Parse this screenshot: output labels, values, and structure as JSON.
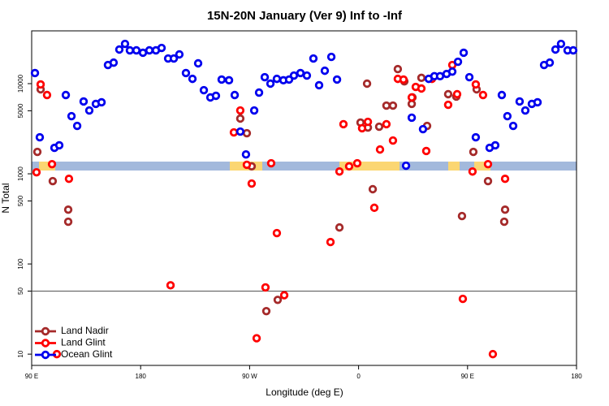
{
  "chart_data": {
    "type": "scatter",
    "title": "15N-20N January (Ver 9)   Inf to -Inf",
    "x_label": "Longitude (deg E)",
    "y_label": "N Total",
    "xlim": [
      90,
      540
    ],
    "xticks": [
      {
        "value": 90,
        "label": "90 E"
      },
      {
        "value": 180,
        "label": "180"
      },
      {
        "value": 270,
        "label": "90 W"
      },
      {
        "value": 360,
        "label": "0"
      },
      {
        "value": 450,
        "label": "90 E"
      },
      {
        "value": 540,
        "label": "180"
      }
    ],
    "ylim": [
      7.5,
      38500
    ],
    "log_y": true,
    "yticks": [
      10,
      50,
      100,
      500,
      1000,
      5000,
      10000
    ],
    "hline": 50,
    "legend": "bottom-left",
    "series": [
      {
        "name": "Land Nadir",
        "color": "#a52a2a",
        "x": [
          94.7,
          97.4,
          107.4,
          120.2,
          120.2,
          262.3,
          267.7,
          271.7,
          283.8,
          293.2,
          344.2,
          361.6,
          367.7,
          367,
          371.7,
          377,
          383,
          388.4,
          392.4,
          397.8,
          403.9,
          404.5,
          411.9,
          416.6,
          434,
          440.7,
          445.4,
          454.8,
          457.5,
          466.9,
          481,
          480.3
        ],
        "values": [
          1750,
          8650,
          830,
          400,
          294,
          4100,
          2820,
          1210,
          30,
          40,
          254,
          3700,
          3260,
          10000,
          675,
          3330,
          5710,
          5710,
          14500,
          10600,
          5960,
          7030,
          11600,
          3400,
          7640,
          7180,
          340,
          1750,
          8650,
          830,
          400,
          294
        ]
      },
      {
        "name": "Land Glint",
        "color": "#ff0000",
        "x": [
          94,
          97.4,
          102.7,
          106.8,
          120.8,
          110.8,
          204.7,
          257,
          262.3,
          267.7,
          271.7,
          275.8,
          283.1,
          287.8,
          292.5,
          298.6,
          336.8,
          344.2,
          347.5,
          352.2,
          358.9,
          362.9,
          367.7,
          373,
          377.7,
          383,
          388.4,
          392.4,
          397.1,
          403.9,
          407.2,
          411.9,
          415.9,
          420.6,
          434,
          437.4,
          441.4,
          446.1,
          454.1,
          456.8,
          462.8,
          466.9,
          481,
          470.9
        ],
        "values": [
          1040,
          9800,
          7480,
          1280,
          880,
          10,
          58,
          2880,
          5040,
          1260,
          780,
          15,
          55,
          1310,
          220,
          45,
          175,
          1060,
          3550,
          1210,
          1310,
          3200,
          3770,
          420,
          1860,
          3550,
          2340,
          11300,
          11100,
          7030,
          9200,
          8830,
          1790,
          11300,
          5830,
          16100,
          7640,
          41,
          1060,
          9800,
          7480,
          1280,
          880,
          10
        ]
      },
      {
        "name": "Ocean Glint",
        "color": "#0000ee",
        "x": [
          92.7,
          96.7,
          108.8,
          112.8,
          118.2,
          122.9,
          127.6,
          132.9,
          137.6,
          143,
          147.7,
          153,
          157.7,
          162.4,
          167.1,
          171.1,
          176.5,
          181.9,
          187.2,
          192.6,
          197.3,
          202.7,
          207.4,
          212,
          217.4,
          222.8,
          227.5,
          232.2,
          237.6,
          242.2,
          246.9,
          253,
          257.7,
          262.3,
          267,
          273.8,
          277.8,
          282.5,
          287.2,
          292.5,
          297.9,
          302.6,
          306.6,
          312,
          317.3,
          322.7,
          327.4,
          332.1,
          337.5,
          342.2,
          399.2,
          403.9,
          413.2,
          417.9,
          422.6,
          427.3,
          432.7,
          437.4,
          442.1,
          446.8,
          451.5,
          456.8,
          468.2,
          472.9,
          478.3,
          482.9,
          487.7,
          493,
          497.7,
          503.1,
          507.8,
          513.2,
          517.9,
          522.6,
          527.2,
          532.6,
          537.3
        ],
        "values": [
          13100,
          2540,
          1940,
          2070,
          7480,
          4360,
          3400,
          6340,
          5040,
          5960,
          6210,
          16100,
          17100,
          23900,
          27600,
          23400,
          23400,
          22000,
          23400,
          23400,
          24900,
          19000,
          19000,
          21100,
          13100,
          11300,
          16800,
          8470,
          7030,
          7330,
          11100,
          10900,
          7480,
          2940,
          1640,
          5040,
          7960,
          11800,
          10000,
          11300,
          10900,
          11100,
          12300,
          13100,
          12300,
          19000,
          9600,
          13900,
          19800,
          11100,
          1230,
          4190,
          3130,
          11300,
          12100,
          12100,
          12800,
          13600,
          17500,
          22000,
          11800,
          2540,
          1940,
          2070,
          7480,
          4360,
          3400,
          6340,
          5040,
          5960,
          6210,
          16100,
          17100,
          23900,
          27600,
          23400,
          23400
        ]
      }
    ]
  }
}
